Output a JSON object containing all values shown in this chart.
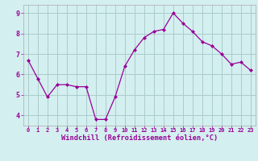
{
  "x": [
    0,
    1,
    2,
    3,
    4,
    5,
    6,
    7,
    8,
    9,
    10,
    11,
    12,
    13,
    14,
    15,
    16,
    17,
    18,
    19,
    20,
    21,
    22,
    23
  ],
  "y": [
    6.7,
    5.8,
    4.9,
    5.5,
    5.5,
    5.4,
    5.4,
    3.8,
    3.8,
    4.9,
    6.4,
    7.2,
    7.8,
    8.1,
    8.2,
    9.0,
    8.5,
    8.1,
    7.6,
    7.4,
    7.0,
    6.5,
    6.6,
    6.2
  ],
  "line_color": "#990099",
  "marker": "D",
  "marker_size": 2,
  "bg_color": "#d4efef",
  "grid_color": "#aacccc",
  "xlabel": "Windchill (Refroidissement éolien,°C)",
  "xlabel_color": "#990099",
  "ylim": [
    3.5,
    9.4
  ],
  "yticks": [
    4,
    5,
    6,
    7,
    8,
    9
  ],
  "tick_color": "#990099",
  "axis_color": "#990099",
  "spine_color": "#aaaaaa",
  "xtick_fontsize": 5.0,
  "ytick_fontsize": 6.0,
  "xlabel_fontsize": 6.2
}
